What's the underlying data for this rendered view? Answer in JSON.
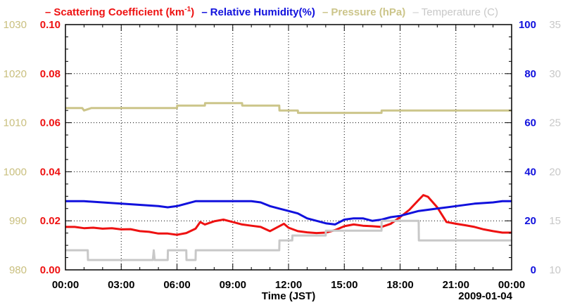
{
  "chart_data": {
    "type": "line",
    "xlabel": "Time (JST)",
    "date": "2009-01-04",
    "x_ticks": [
      "00:00",
      "03:00",
      "06:00",
      "09:00",
      "12:00",
      "15:00",
      "18:00",
      "21:00",
      "00:00"
    ],
    "x_range_hours": [
      0,
      24
    ],
    "grid": true,
    "legend": [
      {
        "dash": "–",
        "label": "Scattering Coefficient (km",
        "sup": "-1",
        "suffix": ")",
        "color": "#ee1111"
      },
      {
        "dash": "–",
        "label": "Relative Humidity(%)",
        "color": "#1111dd"
      },
      {
        "dash": "–",
        "label": "Pressure (hPa)",
        "color": "#ccc58a"
      },
      {
        "dash": "–",
        "label": "Temperature (C)",
        "color": "#c8c8c8"
      }
    ],
    "axes": {
      "pressure": {
        "ticks": [
          "980",
          "990",
          "1000",
          "1010",
          "1020",
          "1030"
        ],
        "range": [
          980,
          1030
        ],
        "color": "#c9bf7e"
      },
      "scattering": {
        "ticks": [
          "0.00",
          "0.02",
          "0.04",
          "0.06",
          "0.08",
          "0.10"
        ],
        "range": [
          0,
          0.1
        ],
        "color": "#ee1111"
      },
      "humidity": {
        "ticks": [
          "0",
          "20",
          "40",
          "60",
          "80",
          "100"
        ],
        "range": [
          0,
          100
        ],
        "color": "#1111dd"
      },
      "temperature": {
        "ticks": [
          "10",
          "15",
          "20",
          "25",
          "30",
          "35"
        ],
        "range": [
          10,
          35
        ],
        "color": "#c8c8c8"
      }
    },
    "series": [
      {
        "name": "Scattering Coefficient",
        "axis": "scattering",
        "color": "#ee1111",
        "x": [
          0,
          0.5,
          1,
          1.5,
          2,
          2.5,
          3,
          3.5,
          4,
          4.5,
          5,
          5.5,
          6,
          6.5,
          7,
          7.25,
          7.5,
          8,
          8.5,
          9,
          9.5,
          10,
          10.5,
          11,
          11.5,
          11.75,
          12,
          12.5,
          13,
          13.5,
          14,
          14.5,
          15,
          15.5,
          16,
          16.5,
          17,
          17.5,
          18,
          18.5,
          19,
          19.25,
          19.5,
          20,
          20.5,
          21,
          21.5,
          22,
          22.5,
          23,
          23.5,
          24
        ],
        "values": [
          0.0175,
          0.0175,
          0.017,
          0.0172,
          0.0168,
          0.017,
          0.0165,
          0.0166,
          0.0158,
          0.0155,
          0.0148,
          0.0148,
          0.0143,
          0.015,
          0.0168,
          0.0195,
          0.0185,
          0.0198,
          0.0205,
          0.0195,
          0.0185,
          0.018,
          0.0175,
          0.0158,
          0.0178,
          0.0188,
          0.0172,
          0.0158,
          0.0153,
          0.015,
          0.0152,
          0.0162,
          0.0178,
          0.0185,
          0.018,
          0.0178,
          0.0175,
          0.0188,
          0.0215,
          0.0245,
          0.0285,
          0.0305,
          0.0298,
          0.0255,
          0.0195,
          0.0188,
          0.0182,
          0.0175,
          0.0165,
          0.0158,
          0.0152,
          0.0152
        ]
      },
      {
        "name": "Relative Humidity",
        "axis": "humidity",
        "color": "#1111dd",
        "x": [
          0,
          1,
          2,
          3,
          4,
          5,
          5.5,
          6,
          7,
          8,
          9,
          10,
          10.5,
          11,
          11.5,
          12,
          12.5,
          13,
          13.5,
          14,
          14.5,
          15,
          15.5,
          16,
          16.5,
          17,
          17.5,
          18,
          18.5,
          19,
          19.5,
          20,
          21,
          22,
          23,
          23.5,
          24
        ],
        "values": [
          28,
          28,
          27.5,
          27,
          26.5,
          26,
          25.5,
          26,
          28,
          28,
          28,
          28,
          27.5,
          26,
          25,
          24,
          23,
          21,
          20,
          19,
          18.5,
          20.5,
          21,
          21,
          20,
          20.5,
          21.5,
          22,
          23,
          24,
          24.5,
          25,
          26,
          27,
          27.5,
          28,
          28
        ]
      },
      {
        "name": "Pressure",
        "axis": "pressure",
        "color": "#ccc58a",
        "x": [
          0,
          0.9,
          1.0,
          1.4,
          6.0,
          6.01,
          7.5,
          7.51,
          9.5,
          9.51,
          11.5,
          11.51,
          12.5,
          12.51,
          17.0,
          17.01,
          24
        ],
        "values": [
          1013,
          1013,
          1012.5,
          1013,
          1013,
          1013.5,
          1013.5,
          1014,
          1014,
          1013.5,
          1013.5,
          1012.5,
          1012.5,
          1012,
          1012,
          1012.5,
          1012.5
        ]
      },
      {
        "name": "Temperature",
        "axis": "temperature",
        "color": "#c8c8c8",
        "x": [
          0,
          1.2,
          1.21,
          4.7,
          4.75,
          4.8,
          4.85,
          5.5,
          5.51,
          6.5,
          6.51,
          7.0,
          7.01,
          11.5,
          11.51,
          12.2,
          12.21,
          14.0,
          14.01,
          15.0,
          15.01,
          17.0,
          17.01,
          19.0,
          19.01,
          24
        ],
        "values": [
          12,
          12,
          11,
          11,
          12,
          11,
          11,
          11,
          12,
          12,
          11,
          11,
          12,
          12,
          13,
          13,
          13.5,
          13.5,
          14,
          14,
          14,
          14,
          15,
          15,
          13,
          13
        ]
      }
    ]
  }
}
